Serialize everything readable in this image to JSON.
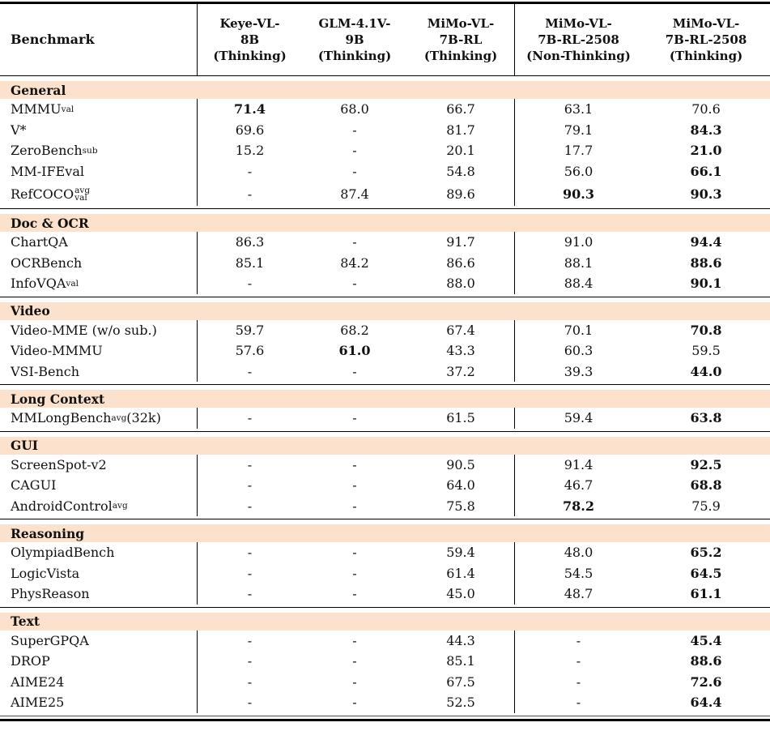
{
  "table": {
    "header": {
      "benchmark": "Benchmark",
      "columns": [
        {
          "lines": [
            "Keye-VL-",
            "8B",
            "(Thinking)"
          ]
        },
        {
          "lines": [
            "GLM-4.1V-",
            "9B",
            "(Thinking)"
          ]
        },
        {
          "lines": [
            "MiMo-VL-",
            "7B-RL",
            "(Thinking)"
          ]
        },
        {
          "lines": [
            "MiMo-VL-",
            "7B-RL-2508",
            "(Non-Thinking)"
          ]
        },
        {
          "lines": [
            "MiMo-VL-",
            "7B-RL-2508",
            "(Thinking)"
          ]
        }
      ]
    },
    "band_color": "#fce2cc",
    "sections": [
      {
        "name": "General",
        "rows": [
          {
            "key": "mmmu-val",
            "label": [
              {
                "t": "MMMU"
              },
              {
                "sub": "val"
              }
            ],
            "values": [
              {
                "v": "71.4",
                "b": true
              },
              {
                "v": "68.0"
              },
              {
                "v": "66.7"
              },
              {
                "v": "63.1"
              },
              {
                "v": "70.6"
              }
            ]
          },
          {
            "key": "v-star",
            "label": [
              {
                "t": "V*"
              }
            ],
            "values": [
              {
                "v": "69.6"
              },
              {
                "v": "-"
              },
              {
                "v": "81.7"
              },
              {
                "v": "79.1"
              },
              {
                "v": "84.3",
                "b": true
              }
            ]
          },
          {
            "key": "zerobench-sub",
            "label": [
              {
                "t": "ZeroBench"
              },
              {
                "sub": "sub"
              }
            ],
            "values": [
              {
                "v": "15.2"
              },
              {
                "v": "-"
              },
              {
                "v": "20.1"
              },
              {
                "v": "17.7"
              },
              {
                "v": "21.0",
                "b": true
              }
            ]
          },
          {
            "key": "mm-ifeval",
            "label": [
              {
                "t": "MM-IFEval"
              }
            ],
            "values": [
              {
                "v": "-"
              },
              {
                "v": "-"
              },
              {
                "v": "54.8"
              },
              {
                "v": "56.0"
              },
              {
                "v": "66.1",
                "b": true
              }
            ]
          },
          {
            "key": "refcoco",
            "tall": true,
            "label": [
              {
                "t": "RefCOCO"
              },
              {
                "supsub": [
                  "avg",
                  "val"
                ]
              }
            ],
            "values": [
              {
                "v": "-"
              },
              {
                "v": "87.4"
              },
              {
                "v": "89.6"
              },
              {
                "v": "90.3",
                "b": true
              },
              {
                "v": "90.3",
                "b": true
              }
            ]
          }
        ]
      },
      {
        "name": "Doc & OCR",
        "rows": [
          {
            "key": "chartqa",
            "label": [
              {
                "t": "ChartQA"
              }
            ],
            "values": [
              {
                "v": "86.3"
              },
              {
                "v": "-"
              },
              {
                "v": "91.7"
              },
              {
                "v": "91.0"
              },
              {
                "v": "94.4",
                "b": true
              }
            ]
          },
          {
            "key": "ocrbench",
            "label": [
              {
                "t": "OCRBench"
              }
            ],
            "values": [
              {
                "v": "85.1"
              },
              {
                "v": "84.2"
              },
              {
                "v": "86.6"
              },
              {
                "v": "88.1"
              },
              {
                "v": "88.6",
                "b": true
              }
            ]
          },
          {
            "key": "infovqa-val",
            "label": [
              {
                "t": "InfoVQA"
              },
              {
                "sub": "val"
              }
            ],
            "values": [
              {
                "v": "-"
              },
              {
                "v": "-"
              },
              {
                "v": "88.0"
              },
              {
                "v": "88.4"
              },
              {
                "v": "90.1",
                "b": true
              }
            ]
          }
        ]
      },
      {
        "name": "Video",
        "rows": [
          {
            "key": "video-mme",
            "label": [
              {
                "t": "Video-MME (w/o sub.)"
              }
            ],
            "values": [
              {
                "v": "59.7"
              },
              {
                "v": "68.2"
              },
              {
                "v": "67.4"
              },
              {
                "v": "70.1"
              },
              {
                "v": "70.8",
                "b": true
              }
            ]
          },
          {
            "key": "video-mmmu",
            "label": [
              {
                "t": "Video-MMMU"
              }
            ],
            "values": [
              {
                "v": "57.6"
              },
              {
                "v": "61.0",
                "b": true
              },
              {
                "v": "43.3"
              },
              {
                "v": "60.3"
              },
              {
                "v": "59.5"
              }
            ]
          },
          {
            "key": "vsi-bench",
            "label": [
              {
                "t": "VSI-Bench"
              }
            ],
            "values": [
              {
                "v": "-"
              },
              {
                "v": "-"
              },
              {
                "v": "37.2"
              },
              {
                "v": "39.3"
              },
              {
                "v": "44.0",
                "b": true
              }
            ]
          }
        ]
      },
      {
        "name": "Long Context",
        "rows": [
          {
            "key": "mmlongbench",
            "label": [
              {
                "t": "MMLongBench"
              },
              {
                "sub": "avg"
              },
              {
                "t": " (32k)"
              }
            ],
            "values": [
              {
                "v": "-"
              },
              {
                "v": "-"
              },
              {
                "v": "61.5"
              },
              {
                "v": "59.4"
              },
              {
                "v": "63.8",
                "b": true
              }
            ]
          }
        ]
      },
      {
        "name": "GUI",
        "rows": [
          {
            "key": "screenspot-v2",
            "label": [
              {
                "t": "ScreenSpot-v2"
              }
            ],
            "values": [
              {
                "v": "-"
              },
              {
                "v": "-"
              },
              {
                "v": "90.5"
              },
              {
                "v": "91.4"
              },
              {
                "v": "92.5",
                "b": true
              }
            ]
          },
          {
            "key": "cagui",
            "label": [
              {
                "t": "CAGUI"
              }
            ],
            "values": [
              {
                "v": "-"
              },
              {
                "v": "-"
              },
              {
                "v": "64.0"
              },
              {
                "v": "46.7"
              },
              {
                "v": "68.8",
                "b": true
              }
            ]
          },
          {
            "key": "androidcontrol",
            "label": [
              {
                "t": "AndroidControl"
              },
              {
                "sub": "avg"
              }
            ],
            "values": [
              {
                "v": "-"
              },
              {
                "v": "-"
              },
              {
                "v": "75.8"
              },
              {
                "v": "78.2",
                "b": true
              },
              {
                "v": "75.9"
              }
            ]
          }
        ]
      },
      {
        "name": "Reasoning",
        "rows": [
          {
            "key": "olympiadbench",
            "label": [
              {
                "t": "OlympiadBench"
              }
            ],
            "values": [
              {
                "v": "-"
              },
              {
                "v": "-"
              },
              {
                "v": "59.4"
              },
              {
                "v": "48.0"
              },
              {
                "v": "65.2",
                "b": true
              }
            ]
          },
          {
            "key": "logicvista",
            "label": [
              {
                "t": "LogicVista"
              }
            ],
            "values": [
              {
                "v": "-"
              },
              {
                "v": "-"
              },
              {
                "v": "61.4"
              },
              {
                "v": "54.5"
              },
              {
                "v": "64.5",
                "b": true
              }
            ]
          },
          {
            "key": "physreason",
            "label": [
              {
                "t": "PhysReason"
              }
            ],
            "values": [
              {
                "v": "-"
              },
              {
                "v": "-"
              },
              {
                "v": "45.0"
              },
              {
                "v": "48.7"
              },
              {
                "v": "61.1",
                "b": true
              }
            ]
          }
        ]
      },
      {
        "name": "Text",
        "rows": [
          {
            "key": "supergpqa",
            "label": [
              {
                "t": "SuperGPQA"
              }
            ],
            "values": [
              {
                "v": "-"
              },
              {
                "v": "-"
              },
              {
                "v": "44.3"
              },
              {
                "v": "-"
              },
              {
                "v": "45.4",
                "b": true
              }
            ]
          },
          {
            "key": "drop",
            "label": [
              {
                "t": "DROP"
              }
            ],
            "values": [
              {
                "v": "-"
              },
              {
                "v": "-"
              },
              {
                "v": "85.1"
              },
              {
                "v": "-"
              },
              {
                "v": "88.6",
                "b": true
              }
            ]
          },
          {
            "key": "aime24",
            "label": [
              {
                "t": "AIME24"
              }
            ],
            "values": [
              {
                "v": "-"
              },
              {
                "v": "-"
              },
              {
                "v": "67.5"
              },
              {
                "v": "-"
              },
              {
                "v": "72.6",
                "b": true
              }
            ]
          },
          {
            "key": "aime25",
            "label": [
              {
                "t": "AIME25"
              }
            ],
            "values": [
              {
                "v": "-"
              },
              {
                "v": "-"
              },
              {
                "v": "52.5"
              },
              {
                "v": "-"
              },
              {
                "v": "64.4",
                "b": true
              }
            ]
          }
        ]
      }
    ]
  }
}
